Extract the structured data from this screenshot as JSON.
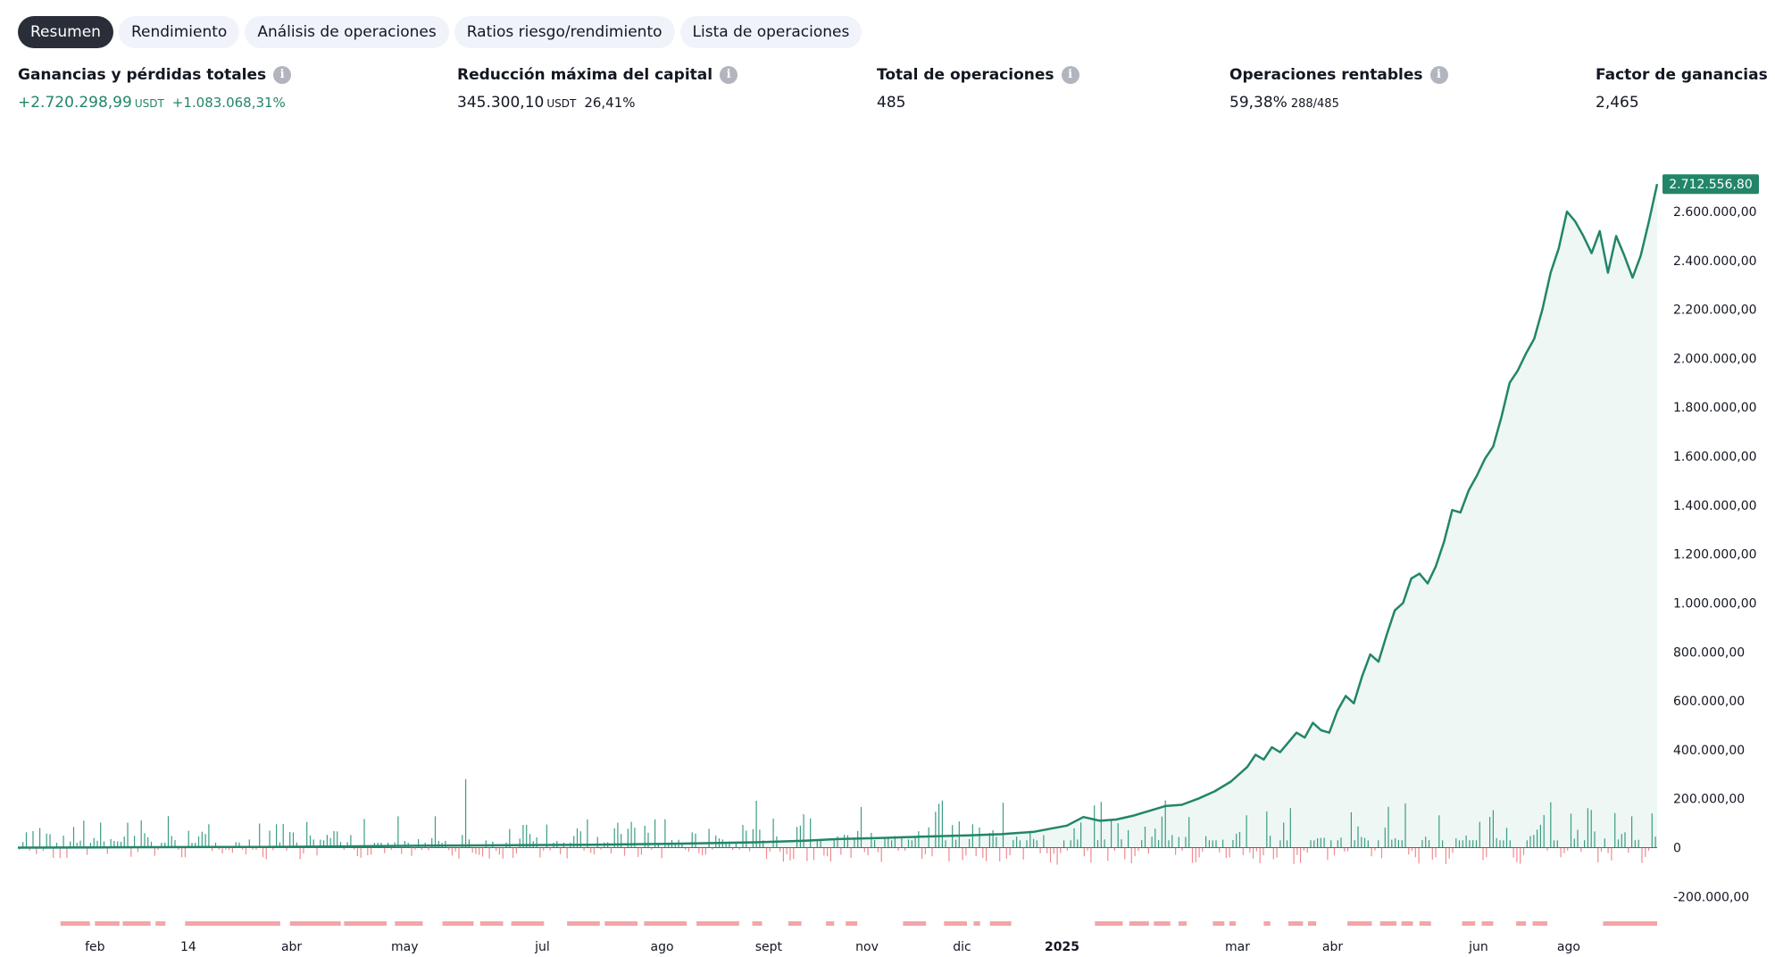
{
  "tabs": [
    {
      "label": "Resumen",
      "active": true
    },
    {
      "label": "Rendimiento",
      "active": false
    },
    {
      "label": "Análisis de operaciones",
      "active": false
    },
    {
      "label": "Ratios riesgo/rendimiento",
      "active": false
    },
    {
      "label": "Lista de operaciones",
      "active": false
    }
  ],
  "metrics": {
    "pnl": {
      "label": "Ganancias y pérdidas totales",
      "value": "+2.720.298,99",
      "unit": "USDT",
      "pct": "+1.083.068,31%"
    },
    "drawdown": {
      "label": "Reducción máxima del capital",
      "value": "345.300,10",
      "unit": "USDT",
      "pct": "26,41%"
    },
    "total_trades": {
      "label": "Total de operaciones",
      "value": "485"
    },
    "profitable": {
      "label": "Operaciones rentables",
      "value": "59,38%",
      "frac": "288/485"
    },
    "profit_factor": {
      "label": "Factor de ganancias",
      "value": "2,465"
    }
  },
  "colors": {
    "equity": "#22856a",
    "fill": "#eef7f4",
    "win": "#3a9c84",
    "loss": "#ef8a8f",
    "drawdown": "#f3a5a8",
    "badge": "#22856a"
  },
  "chart_data": {
    "type": "line",
    "ylim": [
      -250000,
      2830000
    ],
    "yticks": [
      -200000,
      0,
      200000,
      400000,
      600000,
      800000,
      1000000,
      1200000,
      1400000,
      1600000,
      1800000,
      2000000,
      2200000,
      2400000,
      2600000
    ],
    "ytick_labels": [
      "-200.000,00",
      "0",
      "200.000,00",
      "400.000,00",
      "600.000,00",
      "800.000,00",
      "1.000.000,00",
      "1.200.000,00",
      "1.400.000,00",
      "1.600.000,00",
      "1.800.000,00",
      "2.000.000,00",
      "2.200.000,00",
      "2.400.000,00",
      "2.600.000,00"
    ],
    "xticks": [
      {
        "label": "feb",
        "pos": 0.047,
        "bold": false
      },
      {
        "label": "14",
        "pos": 0.104,
        "bold": false
      },
      {
        "label": "abr",
        "pos": 0.167,
        "bold": false
      },
      {
        "label": "may",
        "pos": 0.236,
        "bold": false
      },
      {
        "label": "jul",
        "pos": 0.32,
        "bold": false
      },
      {
        "label": "ago",
        "pos": 0.393,
        "bold": false
      },
      {
        "label": "sept",
        "pos": 0.458,
        "bold": false
      },
      {
        "label": "nov",
        "pos": 0.518,
        "bold": false
      },
      {
        "label": "dic",
        "pos": 0.576,
        "bold": false
      },
      {
        "label": "2025",
        "pos": 0.637,
        "bold": true
      },
      {
        "label": "mar",
        "pos": 0.744,
        "bold": false
      },
      {
        "label": "abr",
        "pos": 0.802,
        "bold": false
      },
      {
        "label": "jun",
        "pos": 0.891,
        "bold": false
      },
      {
        "label": "ago",
        "pos": 0.946,
        "bold": false
      }
    ],
    "last_value_label": "2.712.556,80",
    "equity": {
      "x": [
        0,
        0.05,
        0.1,
        0.15,
        0.2,
        0.25,
        0.3,
        0.35,
        0.4,
        0.45,
        0.48,
        0.5,
        0.53,
        0.55,
        0.58,
        0.6,
        0.62,
        0.64,
        0.65,
        0.66,
        0.67,
        0.68,
        0.69,
        0.7,
        0.71,
        0.72,
        0.73,
        0.74,
        0.75,
        0.755,
        0.76,
        0.765,
        0.77,
        0.775,
        0.78,
        0.785,
        0.79,
        0.795,
        0.8,
        0.805,
        0.81,
        0.815,
        0.82,
        0.825,
        0.83,
        0.835,
        0.84,
        0.845,
        0.85,
        0.855,
        0.86,
        0.865,
        0.87,
        0.875,
        0.88,
        0.885,
        0.89,
        0.895,
        0.9,
        0.905,
        0.91,
        0.915,
        0.92,
        0.925,
        0.93,
        0.935,
        0.94,
        0.945,
        0.95,
        0.955,
        0.96,
        0.965,
        0.97,
        0.975,
        0.98,
        0.985,
        0.99,
        0.995,
        1.0
      ],
      "y": [
        0,
        1000,
        2000,
        3000,
        5000,
        8000,
        10000,
        12000,
        16000,
        22000,
        28000,
        35000,
        40000,
        45000,
        50000,
        55000,
        65000,
        90000,
        125000,
        110000,
        115000,
        130000,
        150000,
        170000,
        175000,
        200000,
        230000,
        270000,
        330000,
        380000,
        360000,
        410000,
        390000,
        430000,
        470000,
        450000,
        510000,
        480000,
        470000,
        560000,
        620000,
        590000,
        700000,
        790000,
        760000,
        870000,
        970000,
        1000000,
        1100000,
        1120000,
        1080000,
        1150000,
        1250000,
        1380000,
        1370000,
        1460000,
        1520000,
        1590000,
        1640000,
        1760000,
        1900000,
        1950000,
        2020000,
        2080000,
        2200000,
        2350000,
        2450000,
        2600000,
        2560000,
        2500000,
        2430000,
        2520000,
        2350000,
        2500000,
        2420000,
        2330000,
        2420000,
        2560000,
        2712556.8
      ]
    },
    "trade_bars": {
      "count": 485,
      "max_win": 280000,
      "max_loss": 70000
    },
    "drawdown_segments": [
      [
        0.026,
        0.044
      ],
      [
        0.047,
        0.062
      ],
      [
        0.064,
        0.081
      ],
      [
        0.084,
        0.09
      ],
      [
        0.102,
        0.16
      ],
      [
        0.166,
        0.197
      ],
      [
        0.199,
        0.225
      ],
      [
        0.23,
        0.247
      ],
      [
        0.259,
        0.278
      ],
      [
        0.282,
        0.296
      ],
      [
        0.301,
        0.321
      ],
      [
        0.335,
        0.355
      ],
      [
        0.358,
        0.378
      ],
      [
        0.382,
        0.408
      ],
      [
        0.414,
        0.44
      ],
      [
        0.448,
        0.454
      ],
      [
        0.47,
        0.478
      ],
      [
        0.493,
        0.498
      ],
      [
        0.505,
        0.512
      ],
      [
        0.54,
        0.554
      ],
      [
        0.565,
        0.579
      ],
      [
        0.583,
        0.587
      ],
      [
        0.593,
        0.606
      ],
      [
        0.657,
        0.674
      ],
      [
        0.678,
        0.69
      ],
      [
        0.693,
        0.703
      ],
      [
        0.708,
        0.713
      ],
      [
        0.729,
        0.736
      ],
      [
        0.739,
        0.743
      ],
      [
        0.76,
        0.764
      ],
      [
        0.775,
        0.784
      ],
      [
        0.787,
        0.792
      ],
      [
        0.811,
        0.826
      ],
      [
        0.831,
        0.841
      ],
      [
        0.844,
        0.851
      ],
      [
        0.855,
        0.862
      ],
      [
        0.881,
        0.889
      ],
      [
        0.893,
        0.9
      ],
      [
        0.914,
        0.92
      ],
      [
        0.924,
        0.933
      ],
      [
        0.967,
        1.0
      ]
    ]
  }
}
